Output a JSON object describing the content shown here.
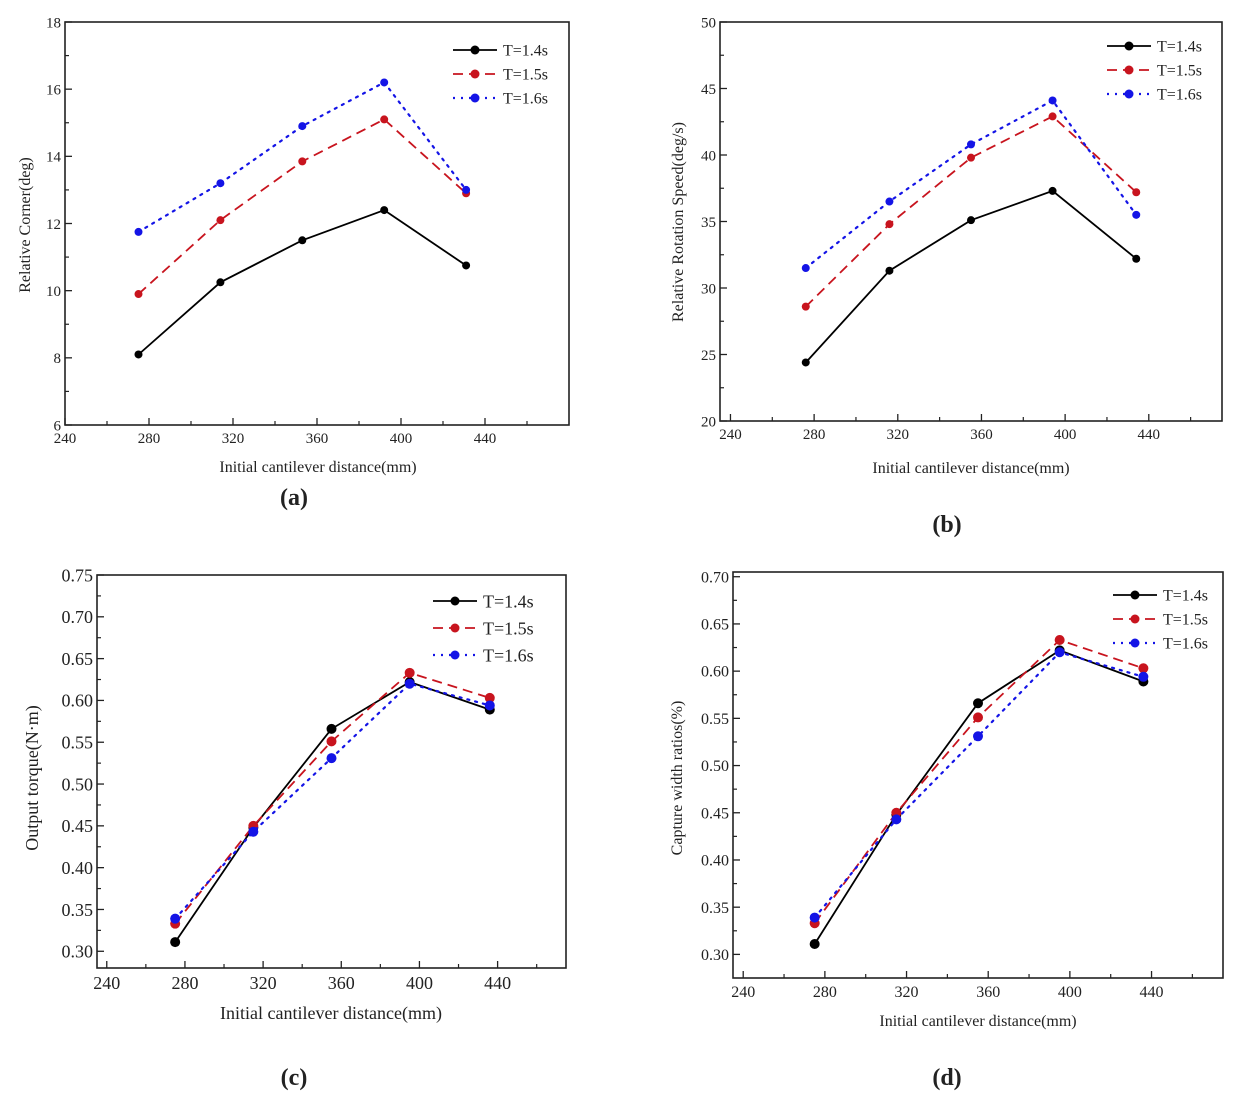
{
  "series_style": {
    "colors": [
      "#000000",
      "#c8141e",
      "#1414e6"
    ],
    "line_styles": [
      "solid",
      "dashed",
      "dotted"
    ],
    "marker": "circle"
  },
  "chart_data": [
    {
      "panel_label": "(a)",
      "type": "line",
      "xlabel": "Initial cantilever distance(mm)",
      "ylabel": "Relative Corner(deg)",
      "xlim": [
        240,
        480
      ],
      "ylim": [
        6,
        18
      ],
      "xticks": [
        "240",
        "280",
        "320",
        "360",
        "400",
        "440"
      ],
      "yticks": [
        "6",
        "8",
        "10",
        "12",
        "14",
        "16",
        "18"
      ],
      "legend_position": "top-right",
      "grid": false,
      "x": [
        275,
        314,
        353,
        392,
        431
      ],
      "series": [
        {
          "name": "T=1.4s",
          "values": [
            8.1,
            10.25,
            11.5,
            12.4,
            10.75
          ]
        },
        {
          "name": "T=1.5s",
          "values": [
            9.9,
            12.1,
            13.85,
            15.1,
            12.9
          ]
        },
        {
          "name": "T=1.6s",
          "values": [
            11.75,
            13.2,
            14.9,
            16.2,
            13.0
          ]
        }
      ]
    },
    {
      "panel_label": "(b)",
      "type": "line",
      "xlabel": "Initial cantilever distance(mm)",
      "ylabel": "Relative Rotation Speed(deg/s)",
      "xlim": [
        235,
        475
      ],
      "ylim": [
        20,
        50
      ],
      "xticks": [
        "240",
        "280",
        "320",
        "360",
        "400",
        "440"
      ],
      "yticks": [
        "20",
        "25",
        "30",
        "35",
        "40",
        "45",
        "50"
      ],
      "legend_position": "top-right",
      "grid": false,
      "x": [
        276,
        316,
        355,
        394,
        434
      ],
      "series": [
        {
          "name": "T=1.4s",
          "values": [
            24.4,
            31.3,
            35.1,
            37.3,
            32.2
          ]
        },
        {
          "name": "T=1.5s",
          "values": [
            28.6,
            34.8,
            39.8,
            42.9,
            37.2
          ]
        },
        {
          "name": "T=1.6s",
          "values": [
            31.5,
            36.5,
            40.8,
            44.1,
            35.5
          ]
        }
      ]
    },
    {
      "panel_label": "(c)",
      "type": "line",
      "xlabel": "Initial cantilever distance(mm)",
      "ylabel": "Output torque(N·m)",
      "xlim": [
        235,
        475
      ],
      "ylim": [
        0.28,
        0.75
      ],
      "xticks": [
        "240",
        "280",
        "320",
        "360",
        "400",
        "440"
      ],
      "yticks": [
        "0.30",
        "0.35",
        "0.40",
        "0.45",
        "0.50",
        "0.55",
        "0.60",
        "0.65",
        "0.70",
        "0.75"
      ],
      "legend_position": "top-right",
      "grid": false,
      "x": [
        275,
        315,
        355,
        395,
        436
      ],
      "series": [
        {
          "name": "T=1.4s",
          "values": [
            0.311,
            0.448,
            0.566,
            0.622,
            0.589
          ]
        },
        {
          "name": "T=1.5s",
          "values": [
            0.333,
            0.45,
            0.551,
            0.633,
            0.603
          ]
        },
        {
          "name": "T=1.6s",
          "values": [
            0.339,
            0.443,
            0.531,
            0.62,
            0.594
          ]
        }
      ]
    },
    {
      "panel_label": "(d)",
      "type": "line",
      "xlabel": "Initial cantilever distance(mm)",
      "ylabel": "Capture width ratios(%)",
      "xlim": [
        235,
        475
      ],
      "ylim": [
        0.275,
        0.705
      ],
      "xticks": [
        "240",
        "280",
        "320",
        "360",
        "400",
        "440"
      ],
      "yticks": [
        "0.30",
        "0.35",
        "0.40",
        "0.45",
        "0.50",
        "0.55",
        "0.60",
        "0.65",
        "0.70"
      ],
      "legend_position": "top-right",
      "grid": false,
      "x": [
        275,
        315,
        355,
        395,
        436
      ],
      "series": [
        {
          "name": "T=1.4s",
          "values": [
            0.311,
            0.448,
            0.566,
            0.622,
            0.589
          ]
        },
        {
          "name": "T=1.5s",
          "values": [
            0.333,
            0.45,
            0.551,
            0.633,
            0.603
          ]
        },
        {
          "name": "T=1.6s",
          "values": [
            0.339,
            0.443,
            0.531,
            0.62,
            0.594
          ]
        }
      ]
    }
  ]
}
